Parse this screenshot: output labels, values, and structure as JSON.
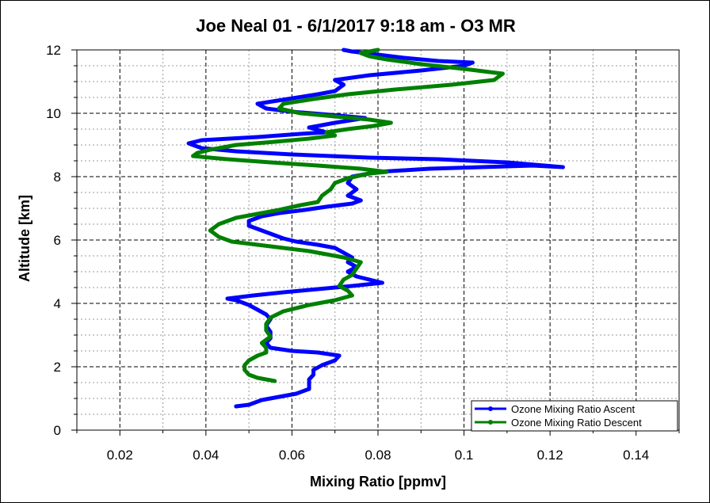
{
  "chart_data": {
    "type": "line",
    "title": "Joe Neal 01 - 6/1/2017 9:18 am - O3 MR",
    "xlabel": "Mixing Ratio [ppmv]",
    "ylabel": "Altitude [km]",
    "xlim": [
      0.01,
      0.15
    ],
    "ylim": [
      0,
      12
    ],
    "x_ticks": [
      "0.02",
      "0.04",
      "0.06",
      "0.08",
      "0.1",
      "0.12",
      "0.14"
    ],
    "y_ticks": [
      "0",
      "2",
      "4",
      "6",
      "8",
      "10",
      "12"
    ],
    "grid": true,
    "legend_position": "bottom-right",
    "series": [
      {
        "name": "Ozone Mixing Ratio Ascent",
        "color": "#0000ff",
        "points": [
          [
            0.047,
            0.75
          ],
          [
            0.05,
            0.8
          ],
          [
            0.053,
            0.95
          ],
          [
            0.057,
            1.05
          ],
          [
            0.061,
            1.15
          ],
          [
            0.064,
            1.3
          ],
          [
            0.064,
            1.45
          ],
          [
            0.064,
            1.6
          ],
          [
            0.065,
            1.75
          ],
          [
            0.065,
            1.9
          ],
          [
            0.067,
            2.05
          ],
          [
            0.07,
            2.2
          ],
          [
            0.071,
            2.35
          ],
          [
            0.066,
            2.45
          ],
          [
            0.06,
            2.5
          ],
          [
            0.055,
            2.6
          ],
          [
            0.054,
            2.75
          ],
          [
            0.055,
            2.9
          ],
          [
            0.055,
            3.1
          ],
          [
            0.054,
            3.3
          ],
          [
            0.055,
            3.5
          ],
          [
            0.054,
            3.65
          ],
          [
            0.052,
            3.8
          ],
          [
            0.05,
            3.95
          ],
          [
            0.047,
            4.1
          ],
          [
            0.045,
            4.15
          ],
          [
            0.051,
            4.25
          ],
          [
            0.058,
            4.35
          ],
          [
            0.066,
            4.45
          ],
          [
            0.074,
            4.55
          ],
          [
            0.081,
            4.65
          ],
          [
            0.078,
            4.75
          ],
          [
            0.075,
            4.85
          ],
          [
            0.073,
            5.0
          ],
          [
            0.075,
            5.15
          ],
          [
            0.073,
            5.3
          ],
          [
            0.074,
            5.45
          ],
          [
            0.072,
            5.6
          ],
          [
            0.07,
            5.75
          ],
          [
            0.066,
            5.85
          ],
          [
            0.061,
            5.95
          ],
          [
            0.058,
            6.05
          ],
          [
            0.055,
            6.2
          ],
          [
            0.052,
            6.35
          ],
          [
            0.05,
            6.45
          ],
          [
            0.05,
            6.6
          ],
          [
            0.053,
            6.75
          ],
          [
            0.057,
            6.85
          ],
          [
            0.063,
            6.95
          ],
          [
            0.068,
            7.05
          ],
          [
            0.074,
            7.15
          ],
          [
            0.076,
            7.25
          ],
          [
            0.073,
            7.4
          ],
          [
            0.075,
            7.6
          ],
          [
            0.073,
            7.8
          ],
          [
            0.074,
            8.0
          ],
          [
            0.08,
            8.15
          ],
          [
            0.092,
            8.25
          ],
          [
            0.104,
            8.3
          ],
          [
            0.116,
            8.35
          ],
          [
            0.123,
            8.3
          ],
          [
            0.11,
            8.45
          ],
          [
            0.094,
            8.55
          ],
          [
            0.078,
            8.6
          ],
          [
            0.06,
            8.7
          ],
          [
            0.047,
            8.8
          ],
          [
            0.039,
            8.9
          ],
          [
            0.036,
            9.05
          ],
          [
            0.039,
            9.15
          ],
          [
            0.052,
            9.25
          ],
          [
            0.062,
            9.35
          ],
          [
            0.068,
            9.4
          ],
          [
            0.064,
            9.55
          ],
          [
            0.07,
            9.7
          ],
          [
            0.077,
            9.85
          ],
          [
            0.069,
            9.95
          ],
          [
            0.06,
            10.05
          ],
          [
            0.054,
            10.15
          ],
          [
            0.052,
            10.3
          ],
          [
            0.059,
            10.45
          ],
          [
            0.066,
            10.6
          ],
          [
            0.07,
            10.7
          ],
          [
            0.072,
            10.9
          ],
          [
            0.07,
            11.05
          ],
          [
            0.078,
            11.2
          ],
          [
            0.09,
            11.35
          ],
          [
            0.1,
            11.5
          ],
          [
            0.102,
            11.6
          ],
          [
            0.094,
            11.65
          ],
          [
            0.086,
            11.75
          ],
          [
            0.08,
            11.85
          ],
          [
            0.074,
            11.95
          ],
          [
            0.072,
            12.0
          ]
        ]
      },
      {
        "name": "Ozone Mixing Ratio Descent",
        "color": "#008000",
        "points": [
          [
            0.056,
            1.55
          ],
          [
            0.054,
            1.6
          ],
          [
            0.052,
            1.65
          ],
          [
            0.05,
            1.75
          ],
          [
            0.049,
            1.9
          ],
          [
            0.049,
            2.05
          ],
          [
            0.05,
            2.2
          ],
          [
            0.052,
            2.35
          ],
          [
            0.054,
            2.45
          ],
          [
            0.054,
            2.6
          ],
          [
            0.053,
            2.75
          ],
          [
            0.055,
            2.95
          ],
          [
            0.054,
            3.15
          ],
          [
            0.054,
            3.35
          ],
          [
            0.055,
            3.55
          ],
          [
            0.058,
            3.75
          ],
          [
            0.064,
            3.95
          ],
          [
            0.07,
            4.1
          ],
          [
            0.074,
            4.25
          ],
          [
            0.073,
            4.4
          ],
          [
            0.071,
            4.55
          ],
          [
            0.072,
            4.75
          ],
          [
            0.074,
            4.9
          ],
          [
            0.075,
            5.1
          ],
          [
            0.076,
            5.3
          ],
          [
            0.072,
            5.45
          ],
          [
            0.068,
            5.55
          ],
          [
            0.064,
            5.65
          ],
          [
            0.058,
            5.75
          ],
          [
            0.052,
            5.85
          ],
          [
            0.046,
            5.95
          ],
          [
            0.043,
            6.1
          ],
          [
            0.041,
            6.3
          ],
          [
            0.043,
            6.5
          ],
          [
            0.047,
            6.7
          ],
          [
            0.053,
            6.85
          ],
          [
            0.057,
            6.95
          ],
          [
            0.062,
            7.1
          ],
          [
            0.066,
            7.2
          ],
          [
            0.067,
            7.4
          ],
          [
            0.069,
            7.6
          ],
          [
            0.07,
            7.8
          ],
          [
            0.073,
            7.95
          ],
          [
            0.078,
            8.1
          ],
          [
            0.082,
            8.15
          ],
          [
            0.076,
            8.25
          ],
          [
            0.066,
            8.35
          ],
          [
            0.055,
            8.45
          ],
          [
            0.045,
            8.55
          ],
          [
            0.037,
            8.65
          ],
          [
            0.038,
            8.75
          ],
          [
            0.041,
            8.85
          ],
          [
            0.047,
            9.0
          ],
          [
            0.056,
            9.1
          ],
          [
            0.064,
            9.2
          ],
          [
            0.07,
            9.3
          ],
          [
            0.068,
            9.4
          ],
          [
            0.073,
            9.5
          ],
          [
            0.079,
            9.6
          ],
          [
            0.083,
            9.7
          ],
          [
            0.078,
            9.8
          ],
          [
            0.07,
            9.9
          ],
          [
            0.062,
            10.0
          ],
          [
            0.057,
            10.15
          ],
          [
            0.058,
            10.3
          ],
          [
            0.065,
            10.45
          ],
          [
            0.073,
            10.6
          ],
          [
            0.084,
            10.75
          ],
          [
            0.097,
            10.9
          ],
          [
            0.107,
            11.05
          ],
          [
            0.109,
            11.25
          ],
          [
            0.1,
            11.4
          ],
          [
            0.09,
            11.55
          ],
          [
            0.082,
            11.7
          ],
          [
            0.078,
            11.8
          ],
          [
            0.076,
            11.9
          ],
          [
            0.08,
            12.0
          ]
        ]
      }
    ]
  }
}
